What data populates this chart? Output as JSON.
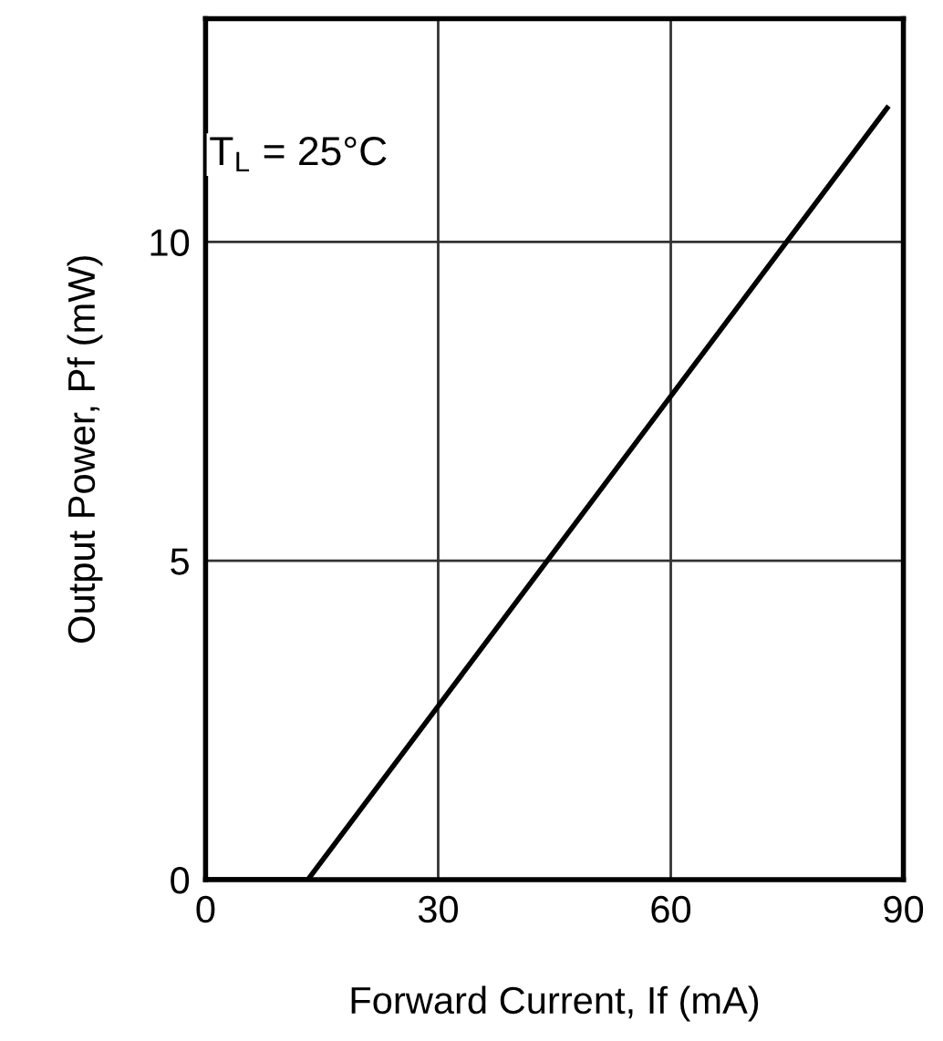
{
  "chart_data": {
    "type": "line",
    "xlabel": "Forward Current, If (mA)",
    "ylabel": "Output Power, Pf (mW)",
    "annotations": [
      "T$_{L}$ = 25°C"
    ],
    "series": [
      {
        "color": "#000000",
        "x": [
          0,
          13.2,
          87.9
        ],
        "values": [
          0,
          0,
          12.1
        ]
      }
    ],
    "xlim": [
      0,
      90
    ],
    "ylim": [
      0,
      13.5
    ],
    "xticks": [
      0,
      30,
      60,
      90
    ],
    "yticks": [
      0,
      5,
      10
    ],
    "grid": true,
    "marker": "none",
    "line_style": "solid"
  }
}
